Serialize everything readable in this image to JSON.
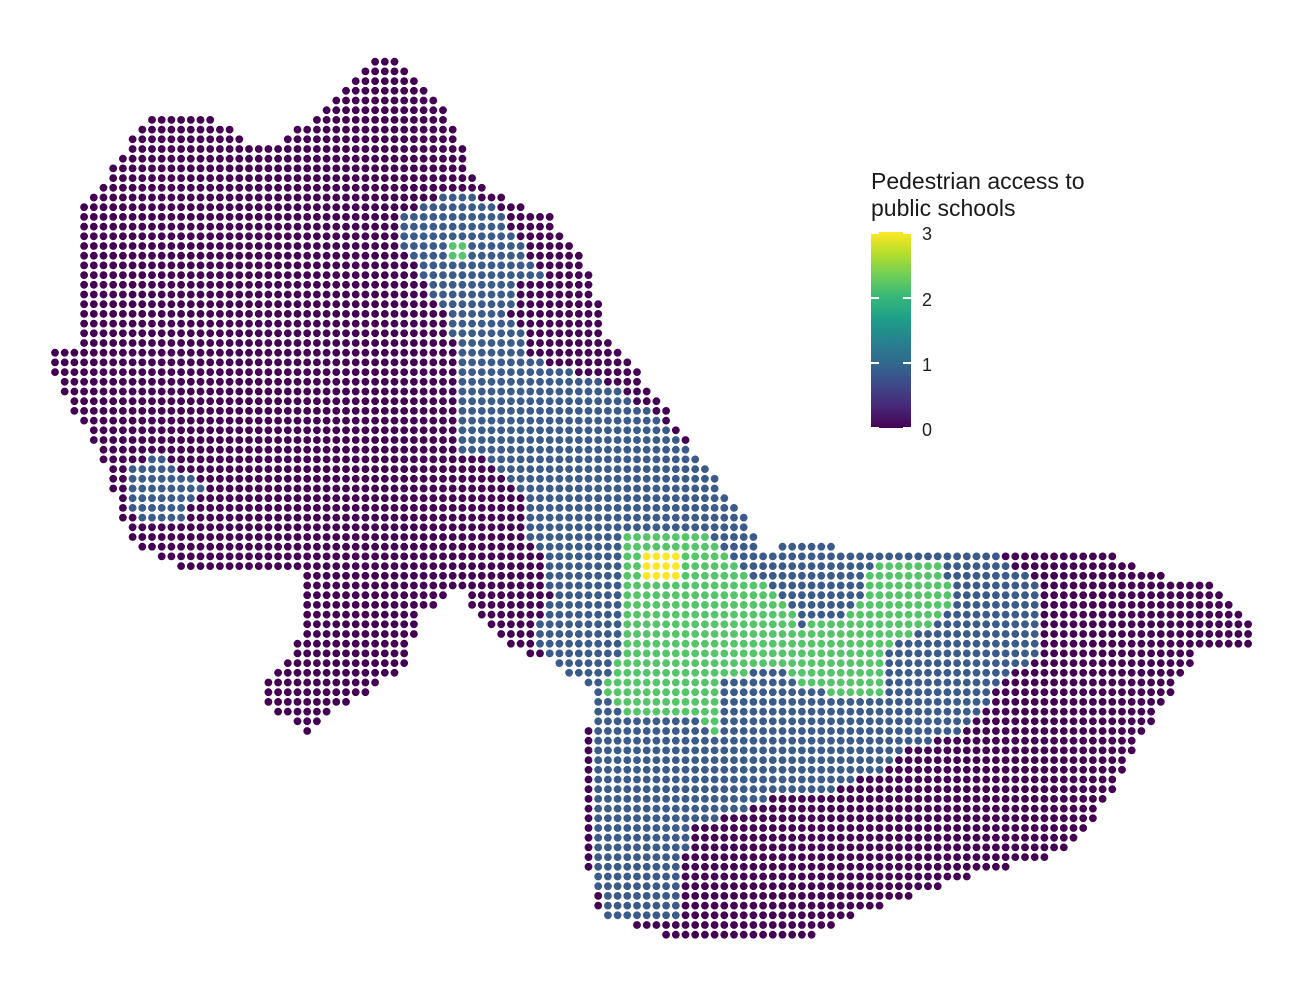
{
  "legend": {
    "title_line1": "Pedestrian access to",
    "title_line2": "public schools",
    "ticks": [
      "0",
      "1",
      "2",
      "3"
    ],
    "range": [
      0,
      3
    ]
  },
  "colors": {
    "level_0": "#440154",
    "level_1": "#3b5c8b",
    "level_2": "#54c568",
    "level_3": "#fde725",
    "background": "#ffffff"
  }
}
